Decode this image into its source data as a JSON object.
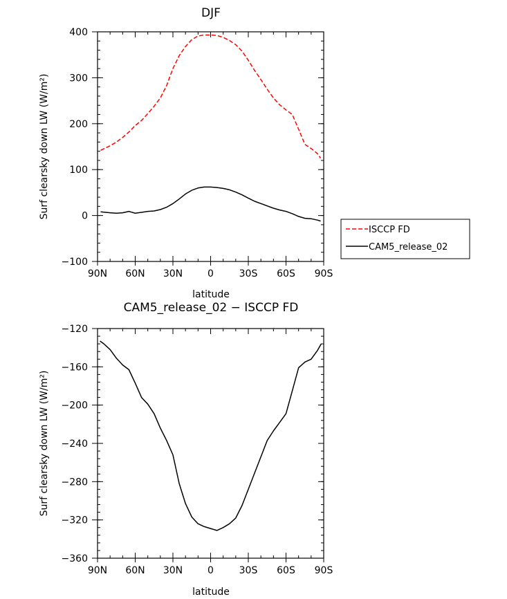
{
  "chart_data": [
    {
      "type": "line",
      "title": "DJF",
      "xlabel": "latitude",
      "ylabel": "Surf clearsky down LW (W/m²)",
      "xlim": [
        -90,
        90
      ],
      "ylim": [
        -100,
        400
      ],
      "xticks": [
        -90,
        -60,
        -30,
        0,
        30,
        60,
        90
      ],
      "xtick_labels": [
        "90N",
        "60N",
        "30N",
        "0",
        "30S",
        "60S",
        "90S"
      ],
      "yticks": [
        -100,
        0,
        100,
        200,
        300,
        400
      ],
      "ytick_labels": [
        "−100",
        "0",
        "100",
        "200",
        "300",
        "400"
      ],
      "legend": [
        "ISCCP FD",
        "CAM5_release_02"
      ],
      "legend_position": "right",
      "series": [
        {
          "name": "ISCCP FD",
          "color": "#ff0000",
          "dash": "dashed",
          "x": [
            -87.5,
            -80,
            -75,
            -70,
            -65,
            -60,
            -55,
            -50,
            -45,
            -40,
            -35,
            -30,
            -25,
            -20,
            -15,
            -10,
            -5,
            0,
            5,
            10,
            15,
            20,
            25,
            30,
            35,
            40,
            45,
            50,
            55,
            60,
            65,
            70,
            75,
            80,
            85,
            87.5
          ],
          "values": [
            142,
            152,
            160,
            170,
            182,
            196,
            207,
            222,
            238,
            256,
            283,
            320,
            348,
            368,
            383,
            391,
            393,
            393,
            392,
            388,
            381,
            372,
            358,
            338,
            316,
            296,
            275,
            256,
            241,
            230,
            220,
            188,
            155,
            146,
            135,
            125
          ]
        },
        {
          "name": "CAM5_release_02",
          "color": "#000000",
          "dash": "solid",
          "x": [
            -87.5,
            -80,
            -75,
            -70,
            -65,
            -60,
            -55,
            -50,
            -45,
            -40,
            -35,
            -30,
            -25,
            -20,
            -15,
            -10,
            -5,
            0,
            5,
            10,
            15,
            20,
            25,
            30,
            35,
            40,
            45,
            50,
            55,
            60,
            65,
            70,
            75,
            80,
            85,
            87.5
          ],
          "values": [
            8,
            6,
            5,
            6,
            9,
            5,
            7,
            9,
            10,
            13,
            18,
            26,
            36,
            47,
            55,
            60,
            62,
            62,
            61,
            59,
            56,
            51,
            45,
            38,
            31,
            26,
            21,
            16,
            12,
            9,
            4,
            -2,
            -6,
            -7,
            -10,
            -12
          ]
        }
      ]
    },
    {
      "type": "line",
      "title": "CAM5_release_02 − ISCCP FD",
      "xlabel": "latitude",
      "ylabel": "Surf clearsky down LW (W/m²)",
      "xlim": [
        -90,
        90
      ],
      "ylim": [
        -360,
        -120
      ],
      "xticks": [
        -90,
        -60,
        -30,
        0,
        30,
        60,
        90
      ],
      "xtick_labels": [
        "90N",
        "60N",
        "30N",
        "0",
        "30S",
        "60S",
        "90S"
      ],
      "yticks": [
        -360,
        -320,
        -280,
        -240,
        -200,
        -160,
        -120
      ],
      "ytick_labels": [
        "−360",
        "−320",
        "−280",
        "−240",
        "−200",
        "−160",
        "−120"
      ],
      "series": [
        {
          "name": "CAM5_release_02 − ISCCP FD",
          "color": "#000000",
          "dash": "solid",
          "x": [
            -88,
            -85,
            -80,
            -75,
            -70,
            -65,
            -60,
            -55,
            -50,
            -45,
            -40,
            -35,
            -30,
            -25,
            -20,
            -15,
            -10,
            -5,
            0,
            5,
            10,
            15,
            20,
            25,
            30,
            35,
            40,
            45,
            50,
            55,
            60,
            65,
            70,
            75,
            80,
            85,
            88
          ],
          "values": [
            -133,
            -136,
            -142,
            -151,
            -158,
            -163,
            -177,
            -192,
            -199,
            -209,
            -224,
            -237,
            -252,
            -282,
            -303,
            -317,
            -324,
            -327,
            -329,
            -331,
            -328,
            -324,
            -318,
            -305,
            -288,
            -271,
            -254,
            -237,
            -227,
            -218,
            -209,
            -185,
            -161,
            -155,
            -152,
            -143,
            -136
          ]
        }
      ]
    }
  ]
}
